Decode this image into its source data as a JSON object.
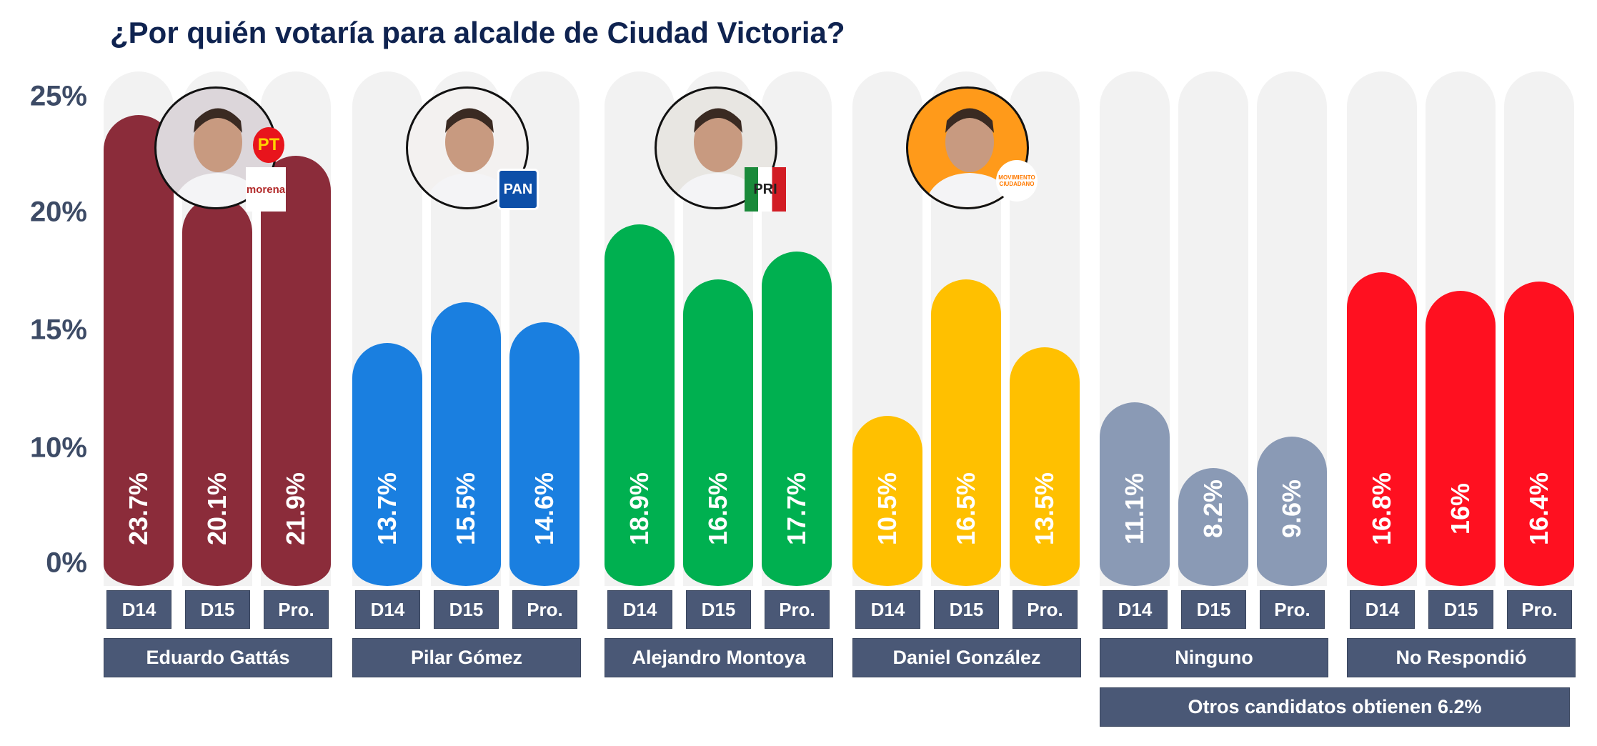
{
  "chart_data": {
    "type": "bar",
    "title": "¿Por quién votaría para alcalde de Ciudad Victoria?",
    "yticks": [
      "0%",
      "10%",
      "15%",
      "20%",
      "25%"
    ],
    "ylim": [
      0,
      25
    ],
    "series_labels": [
      "D14",
      "D15",
      "Pro."
    ],
    "groups": [
      {
        "name": "Eduardo Gattás",
        "color": "#8b2c3a",
        "values": [
          23.7,
          20.1,
          21.9
        ],
        "labels": [
          "23.7%",
          "20.1%",
          "21.9%"
        ],
        "logos": [
          "PT",
          "morena"
        ]
      },
      {
        "name": "Pilar Gómez",
        "color": "#1a7fe0",
        "values": [
          13.7,
          15.5,
          14.6
        ],
        "labels": [
          "13.7%",
          "15.5%",
          "14.6%"
        ],
        "logos": [
          "PAN"
        ]
      },
      {
        "name": "Alejandro Montoya",
        "color": "#00b050",
        "values": [
          18.9,
          16.5,
          17.7
        ],
        "labels": [
          "18.9%",
          "16.5%",
          "17.7%"
        ],
        "logos": [
          "PRI"
        ]
      },
      {
        "name": "Daniel González",
        "color": "#ffc000",
        "values": [
          10.5,
          16.5,
          13.5
        ],
        "labels": [
          "10.5%",
          "16.5%",
          "13.5%"
        ],
        "logos": [
          "MOVIMIENTO CIUDADANO"
        ]
      },
      {
        "name": "Ninguno",
        "color": "#8a9ab5",
        "values": [
          11.1,
          8.2,
          9.6
        ],
        "labels": [
          "11.1%",
          "8.2%",
          "9.6%"
        ],
        "logos": []
      },
      {
        "name": "No Respondió",
        "color": "#ff1020",
        "values": [
          16.8,
          16,
          16.4
        ],
        "labels": [
          "16.8%",
          "16%",
          "16.4%"
        ],
        "logos": []
      }
    ],
    "note": "Otros candidatos obtienen 6.2%"
  }
}
